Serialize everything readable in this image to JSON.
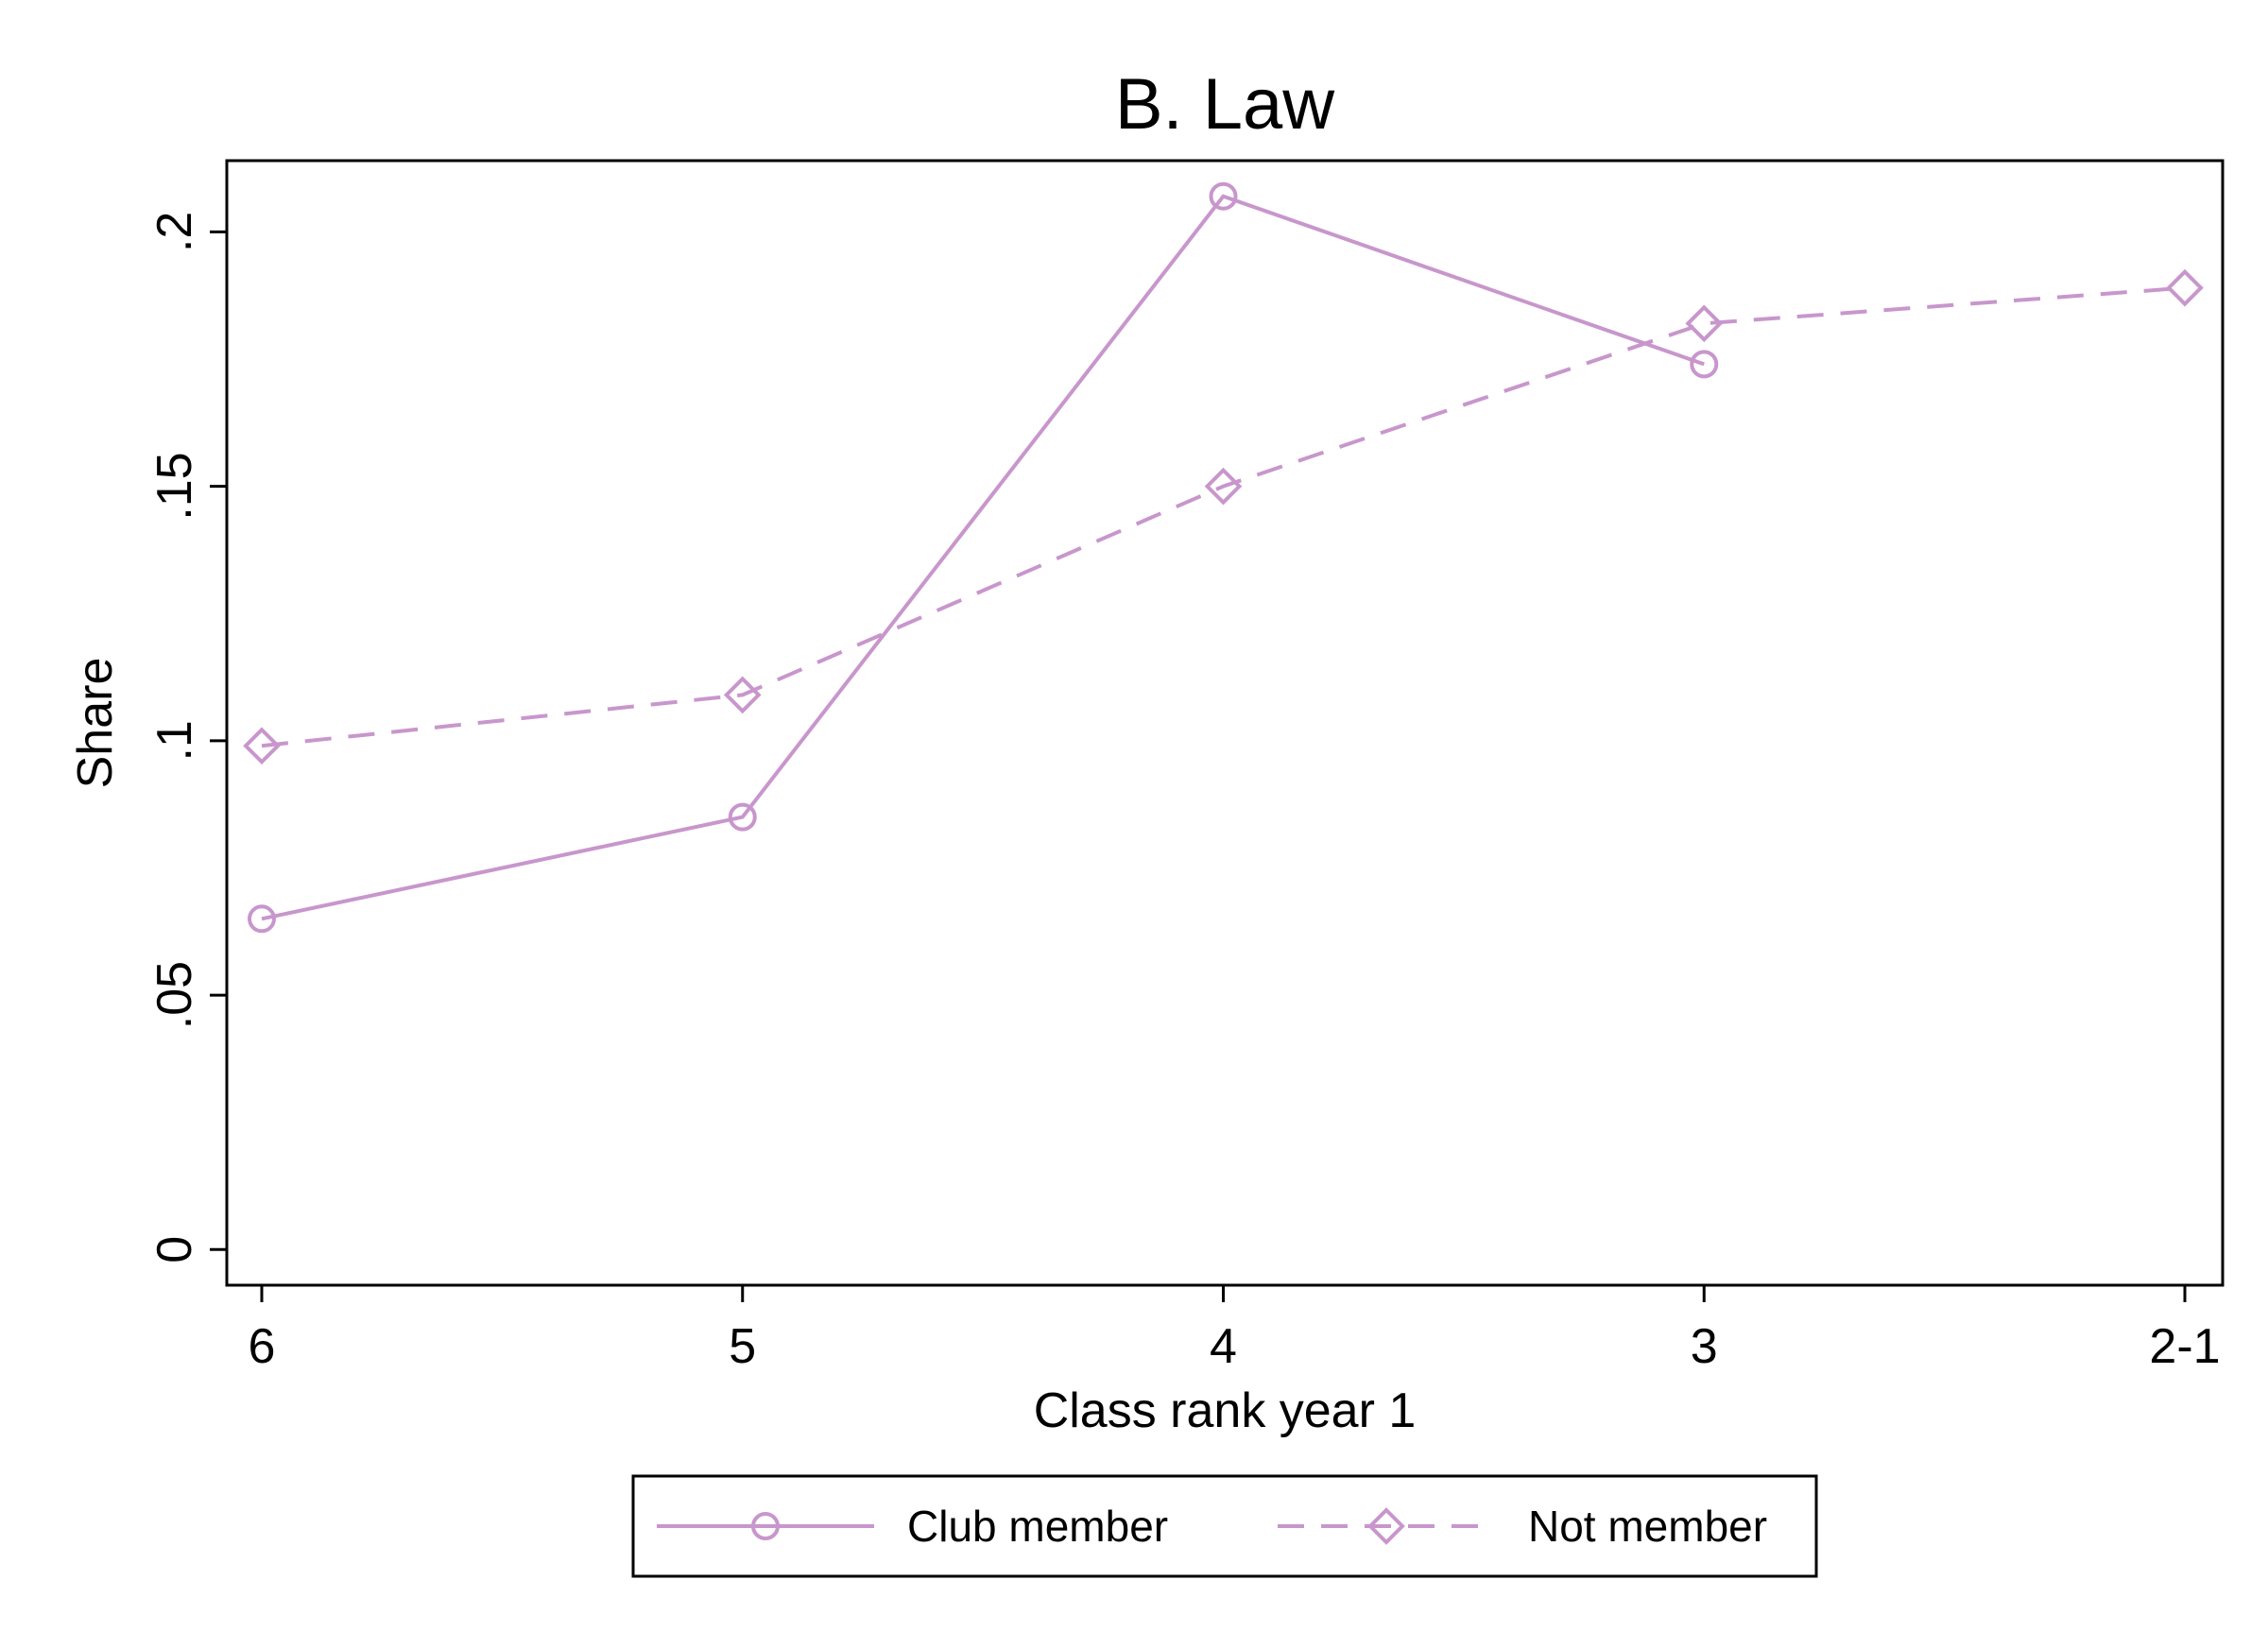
{
  "chart_data": {
    "type": "line",
    "title": "B. Law",
    "xlabel": "Class rank year 1",
    "ylabel": "Share",
    "categories": [
      "6",
      "5",
      "4",
      "3",
      "2-1"
    ],
    "y_ticks": [
      {
        "value": 0,
        "label": "0"
      },
      {
        "value": 0.05,
        "label": ".05"
      },
      {
        "value": 0.1,
        "label": ".1"
      },
      {
        "value": 0.15,
        "label": ".15"
      },
      {
        "value": 0.2,
        "label": ".2"
      }
    ],
    "ylim": [
      -0.007,
      0.214
    ],
    "grid": false,
    "legend_position": "bottom",
    "series": [
      {
        "name": "Club member",
        "marker": "circle",
        "line_style": "solid",
        "color": "#c896cc",
        "values": [
          0.065,
          0.085,
          0.207,
          0.174,
          null
        ]
      },
      {
        "name": "Not member",
        "marker": "diamond",
        "line_style": "dashed",
        "color": "#c896cc",
        "values": [
          0.099,
          0.109,
          0.15,
          0.182,
          0.189
        ]
      }
    ]
  }
}
